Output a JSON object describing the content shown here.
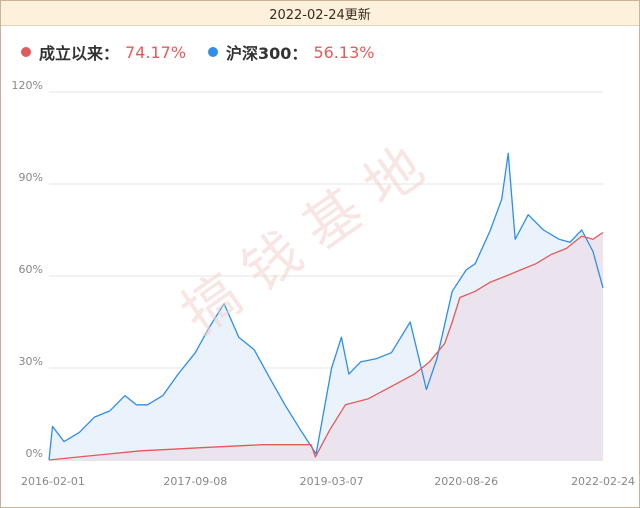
{
  "header": {
    "date_label": "2022-02-24更新"
  },
  "legend": {
    "fund": {
      "name": "成立以来：",
      "value": "74.17%",
      "color": "#e25b5b"
    },
    "index": {
      "name": "沪深300：",
      "value": "56.13%",
      "color": "#2f8ee8"
    }
  },
  "watermark": "搞钱基地",
  "chart_data": {
    "type": "area",
    "x_ticks": [
      "2016-02-01",
      "2017-09-08",
      "2019-03-07",
      "2020-08-26",
      "2022-02-24"
    ],
    "y_ticks": [
      "0%",
      "30%",
      "60%",
      "90%",
      "120%"
    ],
    "ylim": [
      0,
      120
    ],
    "grid": true,
    "legend_position": "top-left",
    "series": [
      {
        "name": "成立以来：",
        "color": "#e25b5b",
        "fill": "#ebe2ec",
        "points": [
          [
            "2016-02-01",
            0
          ],
          [
            "2016-06-01",
            1
          ],
          [
            "2016-10-01",
            2
          ],
          [
            "2017-02-01",
            3
          ],
          [
            "2017-06-01",
            3.5
          ],
          [
            "2017-10-01",
            4
          ],
          [
            "2018-02-01",
            4.5
          ],
          [
            "2018-06-01",
            5
          ],
          [
            "2018-10-01",
            5
          ],
          [
            "2018-12-15",
            5
          ],
          [
            "2019-01-01",
            1
          ],
          [
            "2019-03-01",
            10
          ],
          [
            "2019-05-01",
            18
          ],
          [
            "2019-08-01",
            20
          ],
          [
            "2019-11-01",
            24
          ],
          [
            "2020-02-01",
            28
          ],
          [
            "2020-04-01",
            32
          ],
          [
            "2020-06-01",
            38
          ],
          [
            "2020-07-01",
            45
          ],
          [
            "2020-08-01",
            53
          ],
          [
            "2020-10-01",
            55
          ],
          [
            "2020-12-01",
            58
          ],
          [
            "2021-02-01",
            60
          ],
          [
            "2021-04-01",
            62
          ],
          [
            "2021-06-01",
            64
          ],
          [
            "2021-08-01",
            67
          ],
          [
            "2021-10-01",
            69
          ],
          [
            "2021-12-01",
            73
          ],
          [
            "2022-01-15",
            72
          ],
          [
            "2022-02-24",
            74.17
          ]
        ]
      },
      {
        "name": "沪深300：",
        "color": "#2f8ee8",
        "fill": "#e8f1fb",
        "points": [
          [
            "2016-02-01",
            0
          ],
          [
            "2016-02-15",
            11
          ],
          [
            "2016-04-01",
            6
          ],
          [
            "2016-06-01",
            9
          ],
          [
            "2016-08-01",
            14
          ],
          [
            "2016-10-01",
            16
          ],
          [
            "2016-12-01",
            21
          ],
          [
            "2017-01-15",
            18
          ],
          [
            "2017-03-01",
            18
          ],
          [
            "2017-05-01",
            21
          ],
          [
            "2017-07-01",
            28
          ],
          [
            "2017-09-08",
            35
          ],
          [
            "2017-11-01",
            43
          ],
          [
            "2018-01-01",
            51
          ],
          [
            "2018-03-01",
            40
          ],
          [
            "2018-05-01",
            36
          ],
          [
            "2018-07-01",
            27
          ],
          [
            "2018-09-01",
            18
          ],
          [
            "2018-11-01",
            10
          ],
          [
            "2019-01-04",
            2
          ],
          [
            "2019-03-07",
            30
          ],
          [
            "2019-04-15",
            40
          ],
          [
            "2019-05-15",
            28
          ],
          [
            "2019-07-01",
            32
          ],
          [
            "2019-09-01",
            33
          ],
          [
            "2019-11-01",
            35
          ],
          [
            "2020-01-15",
            45
          ],
          [
            "2020-03-20",
            23
          ],
          [
            "2020-05-01",
            33
          ],
          [
            "2020-07-01",
            55
          ],
          [
            "2020-08-26",
            62
          ],
          [
            "2020-10-01",
            64
          ],
          [
            "2020-12-01",
            75
          ],
          [
            "2021-01-15",
            85
          ],
          [
            "2021-02-10",
            100
          ],
          [
            "2021-03-10",
            72
          ],
          [
            "2021-05-01",
            80
          ],
          [
            "2021-07-01",
            75
          ],
          [
            "2021-09-01",
            72
          ],
          [
            "2021-10-15",
            71
          ],
          [
            "2021-12-01",
            75
          ],
          [
            "2022-01-15",
            68
          ],
          [
            "2022-02-24",
            56.13
          ]
        ]
      }
    ]
  }
}
